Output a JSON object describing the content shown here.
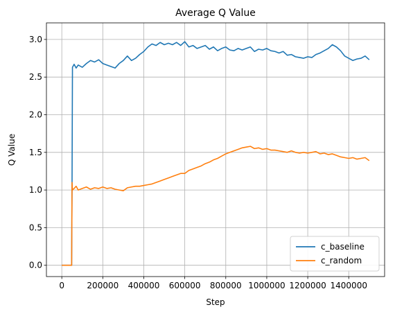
{
  "chart_data": {
    "type": "line",
    "title": "Average Q Value",
    "xlabel": "Step",
    "ylabel": "Q Value",
    "xlim": [
      -75000,
      1575000
    ],
    "ylim": [
      -0.15,
      3.22
    ],
    "xticks": [
      0,
      200000,
      400000,
      600000,
      800000,
      1000000,
      1200000,
      1400000
    ],
    "yticks": [
      0.0,
      0.5,
      1.0,
      1.5,
      2.0,
      2.5,
      3.0
    ],
    "ytick_labels": [
      "0.0",
      "0.5",
      "1.0",
      "1.5",
      "2.0",
      "2.5",
      "3.0"
    ],
    "grid": true,
    "legend_position": "lower-right",
    "series": [
      {
        "name": "c_baseline",
        "color": "#1f77b4",
        "x": [
          0,
          48000,
          50000,
          52000,
          60000,
          70000,
          80000,
          100000,
          120000,
          140000,
          160000,
          180000,
          200000,
          220000,
          240000,
          260000,
          280000,
          300000,
          320000,
          340000,
          360000,
          380000,
          400000,
          420000,
          440000,
          460000,
          480000,
          500000,
          520000,
          540000,
          560000,
          580000,
          600000,
          620000,
          640000,
          660000,
          680000,
          700000,
          720000,
          740000,
          760000,
          780000,
          800000,
          820000,
          840000,
          860000,
          880000,
          900000,
          920000,
          940000,
          960000,
          980000,
          1000000,
          1020000,
          1040000,
          1060000,
          1080000,
          1100000,
          1120000,
          1140000,
          1160000,
          1180000,
          1200000,
          1220000,
          1240000,
          1260000,
          1280000,
          1300000,
          1320000,
          1340000,
          1360000,
          1380000,
          1400000,
          1420000,
          1440000,
          1460000,
          1480000,
          1500000
        ],
        "values": [
          0.0,
          0.0,
          1.1,
          2.63,
          2.67,
          2.62,
          2.66,
          2.63,
          2.68,
          2.72,
          2.7,
          2.73,
          2.68,
          2.66,
          2.64,
          2.62,
          2.68,
          2.72,
          2.78,
          2.72,
          2.75,
          2.8,
          2.84,
          2.9,
          2.94,
          2.92,
          2.96,
          2.93,
          2.95,
          2.93,
          2.96,
          2.92,
          2.97,
          2.9,
          2.92,
          2.88,
          2.9,
          2.92,
          2.87,
          2.9,
          2.85,
          2.88,
          2.9,
          2.86,
          2.85,
          2.88,
          2.86,
          2.88,
          2.9,
          2.84,
          2.87,
          2.86,
          2.88,
          2.85,
          2.84,
          2.82,
          2.84,
          2.79,
          2.8,
          2.77,
          2.76,
          2.75,
          2.77,
          2.76,
          2.8,
          2.82,
          2.85,
          2.88,
          2.93,
          2.9,
          2.85,
          2.78,
          2.75,
          2.72,
          2.74,
          2.75,
          2.78,
          2.73
        ]
      },
      {
        "name": "c_random",
        "color": "#ff7f0e",
        "x": [
          0,
          48000,
          50000,
          52000,
          60000,
          70000,
          80000,
          100000,
          120000,
          140000,
          160000,
          180000,
          200000,
          220000,
          240000,
          260000,
          280000,
          300000,
          320000,
          340000,
          360000,
          380000,
          400000,
          420000,
          440000,
          460000,
          480000,
          500000,
          520000,
          540000,
          560000,
          580000,
          600000,
          620000,
          640000,
          660000,
          680000,
          700000,
          720000,
          740000,
          760000,
          780000,
          800000,
          820000,
          840000,
          860000,
          880000,
          900000,
          920000,
          940000,
          960000,
          980000,
          1000000,
          1020000,
          1040000,
          1060000,
          1080000,
          1100000,
          1120000,
          1140000,
          1160000,
          1180000,
          1200000,
          1220000,
          1240000,
          1260000,
          1280000,
          1300000,
          1320000,
          1340000,
          1360000,
          1380000,
          1400000,
          1420000,
          1440000,
          1460000,
          1480000,
          1500000
        ],
        "values": [
          0.0,
          0.0,
          1.1,
          1.0,
          1.02,
          1.05,
          1.0,
          1.02,
          1.04,
          1.01,
          1.03,
          1.02,
          1.04,
          1.02,
          1.03,
          1.01,
          1.0,
          0.99,
          1.03,
          1.04,
          1.05,
          1.05,
          1.06,
          1.07,
          1.08,
          1.1,
          1.12,
          1.14,
          1.16,
          1.18,
          1.2,
          1.22,
          1.22,
          1.26,
          1.28,
          1.3,
          1.32,
          1.35,
          1.37,
          1.4,
          1.42,
          1.45,
          1.48,
          1.5,
          1.52,
          1.54,
          1.56,
          1.57,
          1.58,
          1.55,
          1.56,
          1.54,
          1.55,
          1.53,
          1.53,
          1.52,
          1.51,
          1.5,
          1.52,
          1.5,
          1.49,
          1.5,
          1.49,
          1.5,
          1.51,
          1.48,
          1.49,
          1.47,
          1.48,
          1.46,
          1.44,
          1.43,
          1.42,
          1.43,
          1.41,
          1.42,
          1.43,
          1.39
        ]
      }
    ]
  }
}
